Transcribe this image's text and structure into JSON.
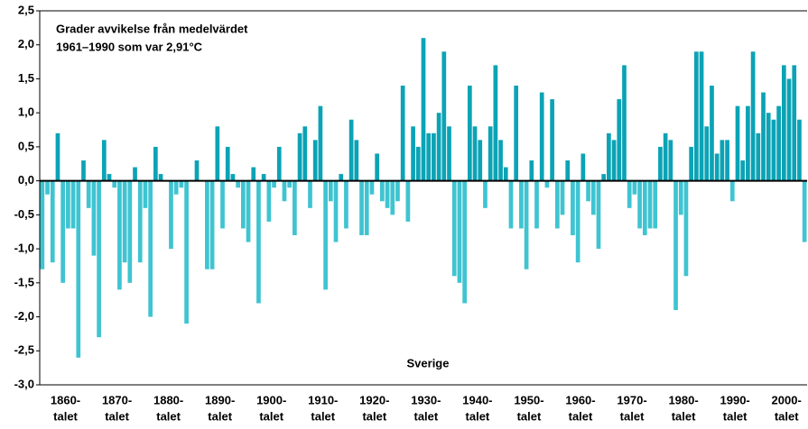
{
  "chart_data": {
    "type": "bar",
    "title_lines": [
      "Grader avvikelse från medelvärdet",
      "1961–1990 som var 2,91°C"
    ],
    "annotation": "Sverige",
    "decade_labels": [
      [
        "1860-",
        "talet"
      ],
      [
        "1870-",
        "talet"
      ],
      [
        "1880-",
        "talet"
      ],
      [
        "1890-",
        "talet"
      ],
      [
        "1900-",
        "talet"
      ],
      [
        "1910-",
        "talet"
      ],
      [
        "1920-",
        "talet"
      ],
      [
        "1930-",
        "talet"
      ],
      [
        "1940-",
        "talet"
      ],
      [
        "1950-",
        "talet"
      ],
      [
        "1960-",
        "talet"
      ],
      [
        "1970-",
        "talet"
      ],
      [
        "1980-",
        "talet"
      ],
      [
        "1990-",
        "talet"
      ],
      [
        "2000-",
        "talet"
      ]
    ],
    "values": [
      -1.3,
      -0.2,
      -1.2,
      0.7,
      -1.5,
      -0.7,
      -0.7,
      -2.6,
      0.3,
      -0.4,
      -1.1,
      -2.3,
      0.6,
      0.1,
      -0.1,
      -1.6,
      -1.2,
      -1.5,
      0.2,
      -1.2,
      -0.4,
      -2.0,
      0.5,
      0.1,
      0.0,
      -1.0,
      -0.2,
      -0.1,
      -2.1,
      0.0,
      0.3,
      0.0,
      -1.3,
      -1.3,
      0.8,
      -0.7,
      0.5,
      0.1,
      -0.1,
      -0.7,
      -0.9,
      0.2,
      -1.8,
      0.1,
      -0.6,
      -0.1,
      0.5,
      -0.3,
      -0.1,
      -0.8,
      0.7,
      0.8,
      -0.4,
      0.6,
      1.1,
      -1.6,
      -0.3,
      -0.9,
      0.1,
      -0.7,
      0.9,
      0.6,
      -0.8,
      -0.8,
      -0.2,
      0.4,
      -0.3,
      -0.4,
      -0.5,
      -0.3,
      1.4,
      -0.6,
      0.8,
      0.5,
      2.1,
      0.7,
      0.7,
      1.0,
      1.9,
      0.8,
      -1.4,
      -1.5,
      -1.8,
      1.4,
      0.8,
      0.6,
      -0.4,
      0.8,
      1.7,
      0.6,
      0.2,
      -0.7,
      1.4,
      -0.7,
      -1.3,
      0.3,
      -0.7,
      1.3,
      -0.1,
      1.2,
      -0.7,
      -0.5,
      0.3,
      -0.8,
      -1.2,
      0.4,
      -0.3,
      -0.5,
      -1.0,
      0.1,
      0.7,
      0.6,
      1.2,
      1.7,
      -0.4,
      -0.2,
      -0.7,
      -0.8,
      -0.7,
      -0.7,
      0.5,
      0.7,
      0.6,
      -1.9,
      -0.5,
      -1.4,
      0.5,
      1.9,
      1.9,
      0.8,
      1.4,
      0.4,
      0.6,
      0.6,
      -0.3,
      1.1,
      0.3,
      1.1,
      1.9,
      0.7,
      1.3,
      1.0,
      0.9,
      1.1,
      1.7,
      1.5,
      1.7,
      0.9,
      -0.9
    ],
    "color_positive": "#0ba3b5",
    "color_negative": "#3fc4d1",
    "ylim": [
      -3.0,
      2.5
    ],
    "yticks": [
      {
        "value": 2.5,
        "label": "2,5"
      },
      {
        "value": 2.0,
        "label": "2,0"
      },
      {
        "value": 1.5,
        "label": "1,5"
      },
      {
        "value": 1.0,
        "label": "1,0"
      },
      {
        "value": 0.5,
        "label": "0,5"
      },
      {
        "value": 0.0,
        "label": "0,0"
      },
      {
        "value": -0.5,
        "label": "-0,5"
      },
      {
        "value": -1.0,
        "label": "-1,0"
      },
      {
        "value": -1.5,
        "label": "-1,5"
      },
      {
        "value": -2.0,
        "label": "-2,0"
      },
      {
        "value": -2.5,
        "label": "-2,5"
      },
      {
        "value": -3.0,
        "label": "-3,0"
      }
    ],
    "grid": false
  }
}
